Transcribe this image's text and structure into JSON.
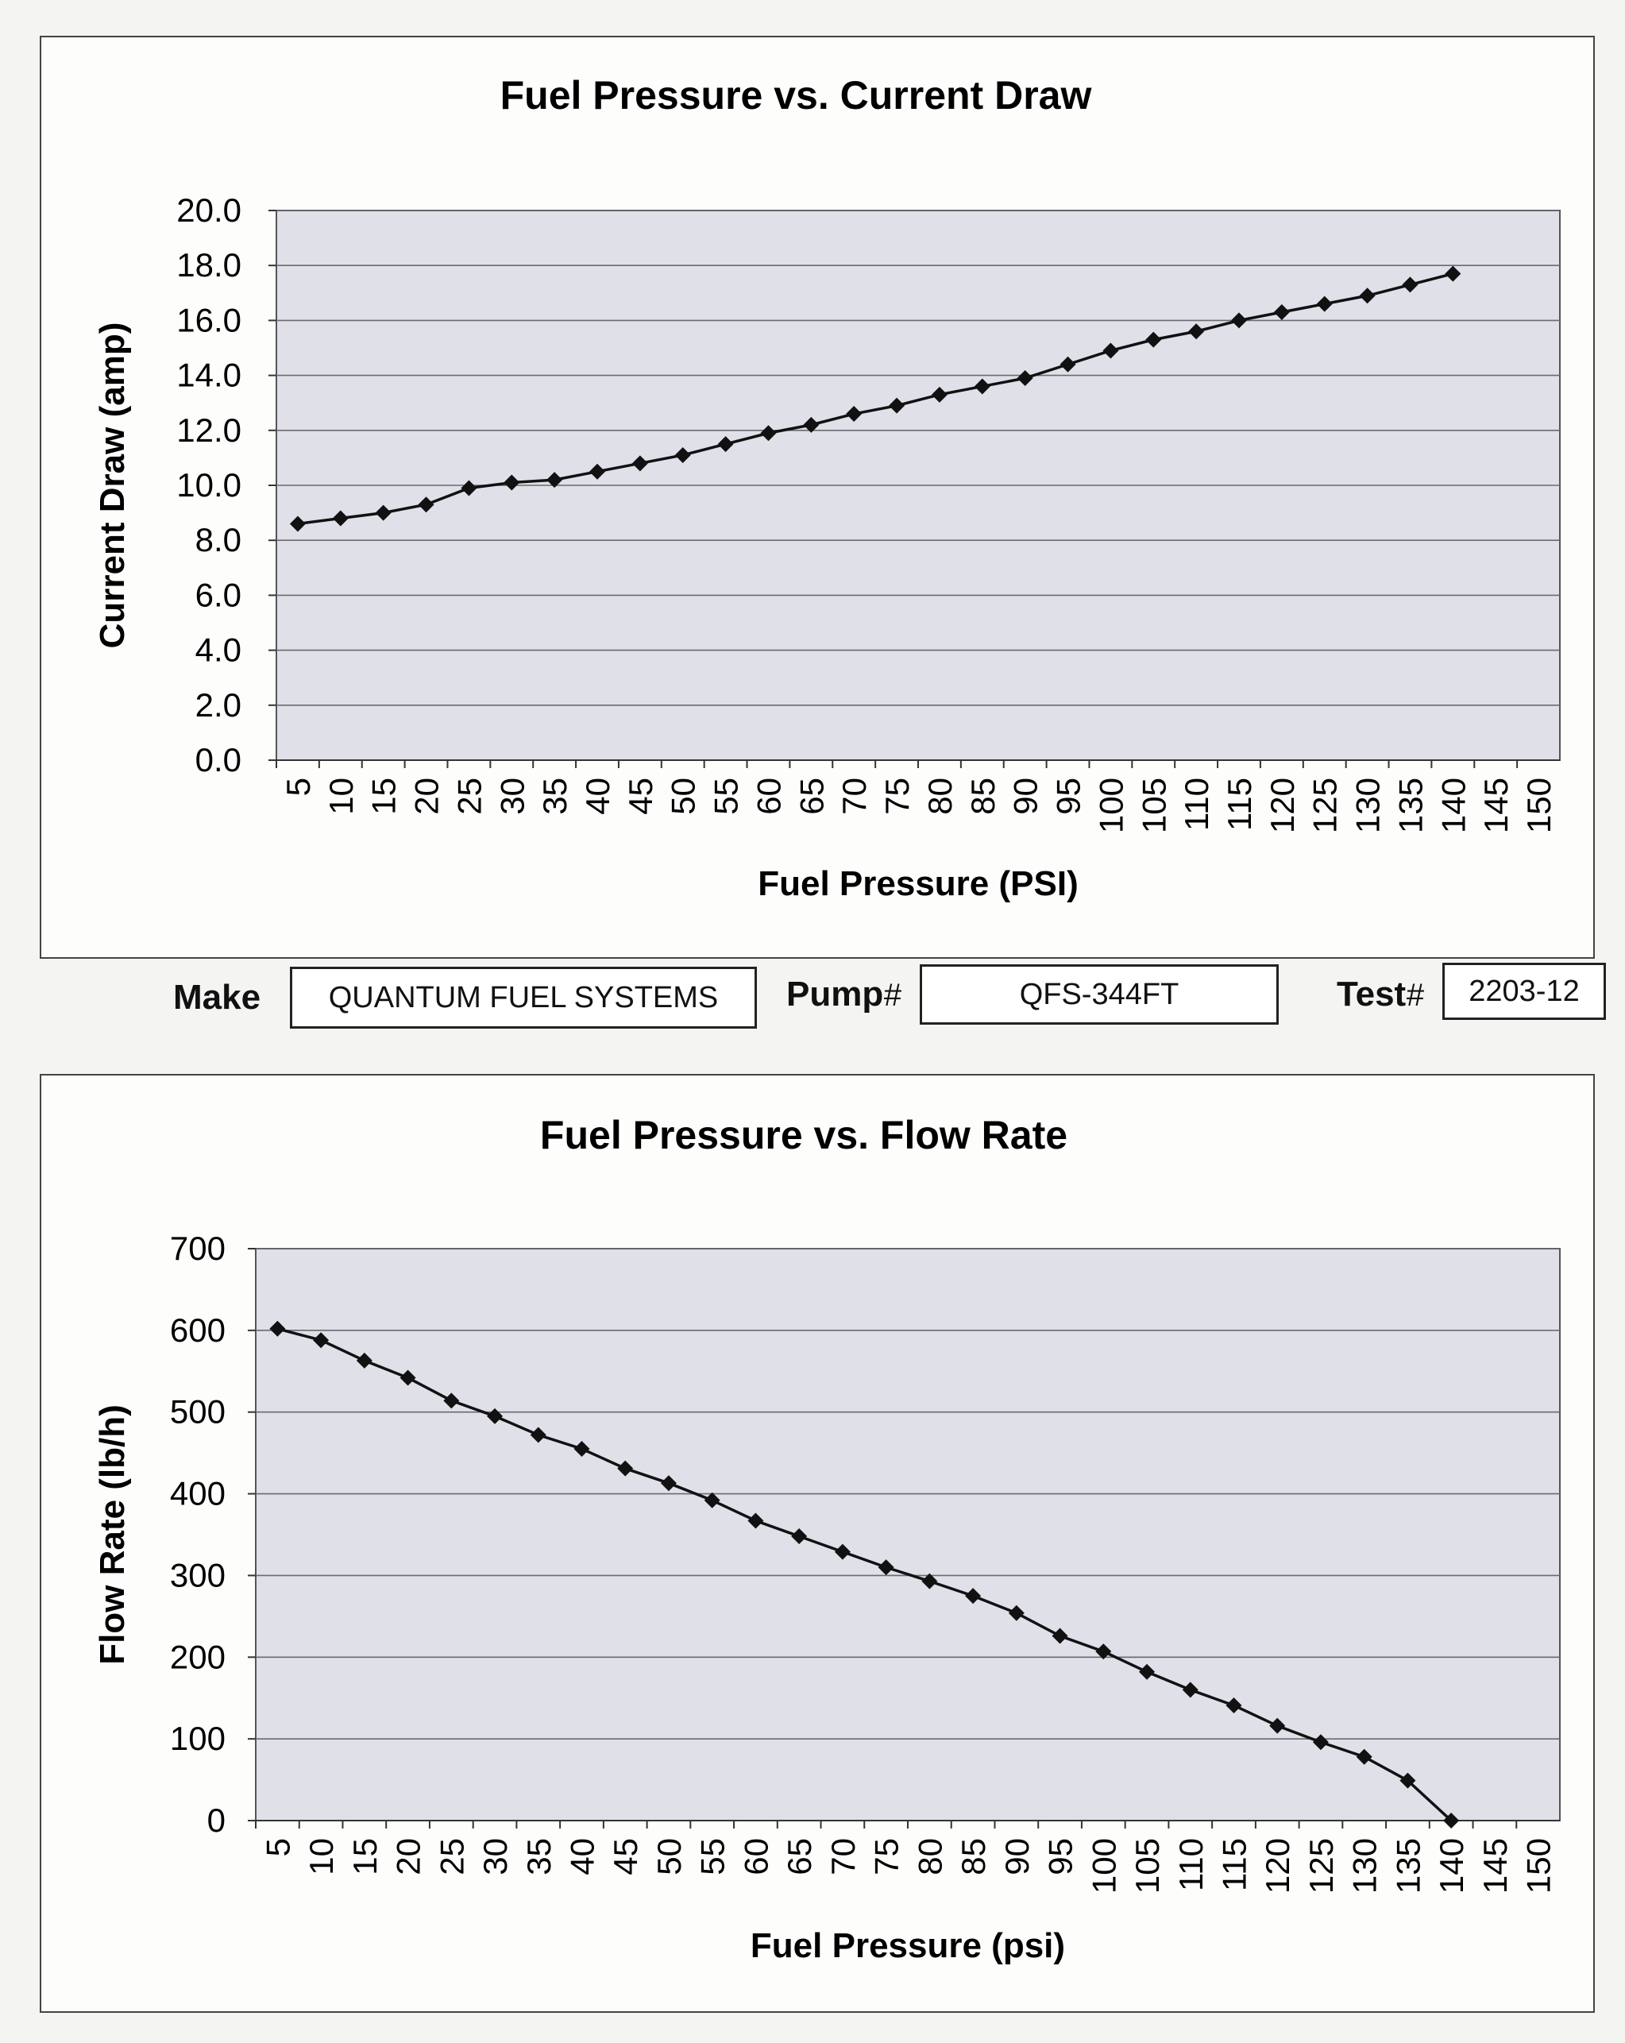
{
  "chart_data": [
    {
      "type": "line",
      "title": "Fuel Pressure vs. Current Draw",
      "xlabel": "Fuel Pressure (PSI)",
      "ylabel": "Current Draw (amp)",
      "categories": [
        "5",
        "10",
        "15",
        "20",
        "25",
        "30",
        "35",
        "40",
        "45",
        "50",
        "55",
        "60",
        "65",
        "70",
        "75",
        "80",
        "85",
        "90",
        "95",
        "100",
        "105",
        "110",
        "115",
        "120",
        "125",
        "130",
        "135",
        "140",
        "145",
        "150"
      ],
      "ylim": [
        0,
        20
      ],
      "yticks": [
        "0.0",
        "2.0",
        "4.0",
        "6.0",
        "8.0",
        "10.0",
        "12.0",
        "14.0",
        "16.0",
        "18.0",
        "20.0"
      ],
      "grid": true,
      "series": [
        {
          "values": [
            8.6,
            8.8,
            9.0,
            9.3,
            9.9,
            10.1,
            10.2,
            10.5,
            10.8,
            11.1,
            11.5,
            11.9,
            12.2,
            12.6,
            12.9,
            13.3,
            13.6,
            13.9,
            14.4,
            14.9,
            15.3,
            15.6,
            16.0,
            16.3,
            16.6,
            16.9,
            17.3,
            17.7,
            null,
            null
          ]
        }
      ]
    },
    {
      "type": "line",
      "title": "Fuel Pressure vs. Flow Rate",
      "xlabel": "Fuel Pressure (psi)",
      "ylabel": "Flow Rate (lb/h)",
      "categories": [
        "5",
        "10",
        "15",
        "20",
        "25",
        "30",
        "35",
        "40",
        "45",
        "50",
        "55",
        "60",
        "65",
        "70",
        "75",
        "80",
        "85",
        "90",
        "95",
        "100",
        "105",
        "110",
        "115",
        "120",
        "125",
        "130",
        "135",
        "140",
        "145",
        "150"
      ],
      "ylim": [
        0,
        700
      ],
      "yticks": [
        "0",
        "100",
        "200",
        "300",
        "400",
        "500",
        "600",
        "700"
      ],
      "grid": true,
      "series": [
        {
          "values": [
            602,
            588,
            563,
            542,
            514,
            495,
            472,
            455,
            431,
            413,
            392,
            367,
            348,
            329,
            310,
            293,
            275,
            254,
            226,
            207,
            182,
            160,
            141,
            116,
            96,
            78,
            49,
            0,
            null,
            null
          ]
        }
      ]
    }
  ],
  "info": {
    "make_label": "Make",
    "make_value": "QUANTUM FUEL SYSTEMS",
    "pump_label": "Pump",
    "pump_value": "QFS-344FT",
    "test_label": "Test",
    "test_value": "2203-12",
    "hash": "#"
  },
  "colors": {
    "plot_bg": "#dfe0e8",
    "line": "#111111",
    "grid": "#6a6a70"
  }
}
